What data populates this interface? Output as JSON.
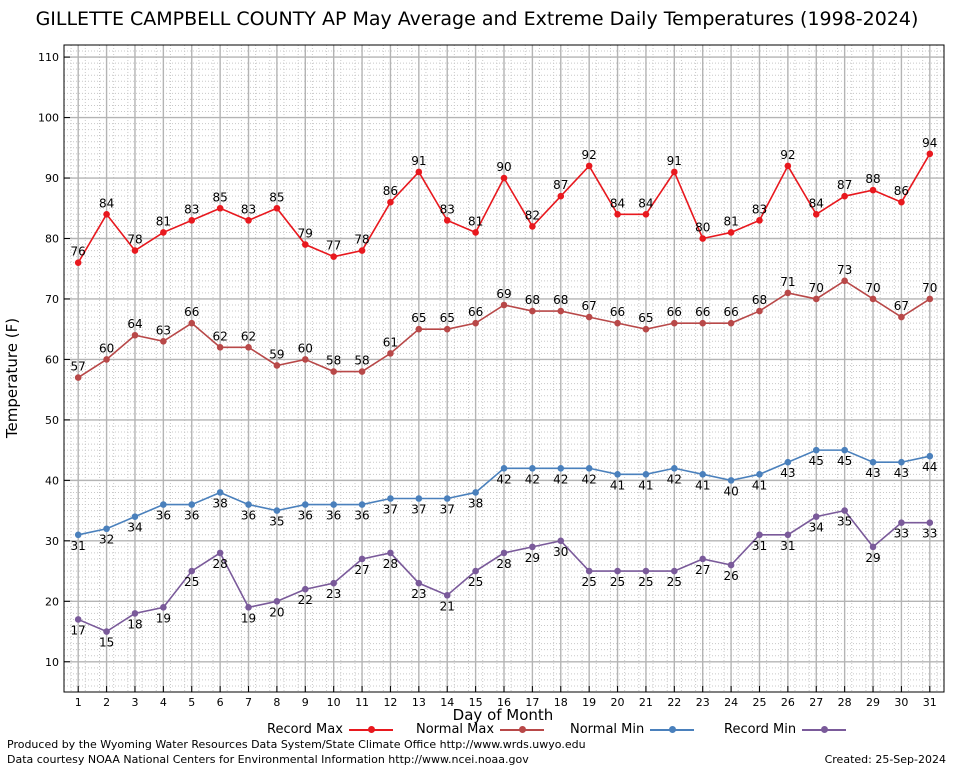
{
  "header": {
    "title": "GILLETTE CAMPBELL COUNTY AP May Average and Extreme Daily Temperatures (1998-2024)"
  },
  "footer": {
    "credit_line1": "Produced by the Wyoming Water Resources Data System/State Climate Office http://www.wrds.uwyo.edu",
    "credit_line2": "Data courtesy NOAA National Centers for Environmental Information http://www.ncei.noaa.gov",
    "created": "Created:  25-Sep-2024"
  },
  "chart_data": {
    "type": "line",
    "title": "GILLETTE CAMPBELL COUNTY AP May Average and Extreme Daily Temperatures (1998-2024)",
    "xlabel": "Day of Month",
    "ylabel": "Temperature (F)",
    "xlim": [
      0.5,
      31.5
    ],
    "ylim": [
      5,
      112
    ],
    "x": [
      1,
      2,
      3,
      4,
      5,
      6,
      7,
      8,
      9,
      10,
      11,
      12,
      13,
      14,
      15,
      16,
      17,
      18,
      19,
      20,
      21,
      22,
      23,
      24,
      25,
      26,
      27,
      28,
      29,
      30,
      31
    ],
    "yticks": [
      10,
      20,
      30,
      40,
      50,
      60,
      70,
      80,
      90,
      100,
      110
    ],
    "grid": true,
    "legend_position": "bottom",
    "series": [
      {
        "name": "Record Max",
        "color": "#e8181e",
        "values": [
          76,
          84,
          78,
          81,
          83,
          85,
          83,
          85,
          79,
          77,
          78,
          86,
          91,
          83,
          81,
          90,
          82,
          87,
          92,
          84,
          84,
          91,
          80,
          81,
          83,
          92,
          84,
          87,
          88,
          86,
          94
        ]
      },
      {
        "name": "Normal Max",
        "color": "#b84848",
        "values": [
          57,
          60,
          64,
          63,
          66,
          62,
          62,
          59,
          60,
          58,
          58,
          61,
          65,
          65,
          66,
          69,
          68,
          68,
          67,
          66,
          65,
          66,
          66,
          66,
          68,
          71,
          70,
          73,
          70,
          67,
          70
        ]
      },
      {
        "name": "Normal Min",
        "color": "#4a80bc",
        "values": [
          31,
          32,
          34,
          36,
          36,
          38,
          36,
          35,
          36,
          36,
          36,
          37,
          37,
          37,
          38,
          42,
          42,
          42,
          42,
          41,
          41,
          42,
          41,
          40,
          41,
          43,
          45,
          45,
          43,
          43,
          44
        ]
      },
      {
        "name": "Record Min",
        "color": "#7a5a9a",
        "values": [
          17,
          15,
          18,
          19,
          25,
          28,
          19,
          20,
          22,
          23,
          27,
          28,
          23,
          21,
          25,
          28,
          29,
          30,
          25,
          25,
          25,
          25,
          27,
          26,
          31,
          31,
          34,
          35,
          29,
          33,
          33
        ]
      }
    ]
  }
}
